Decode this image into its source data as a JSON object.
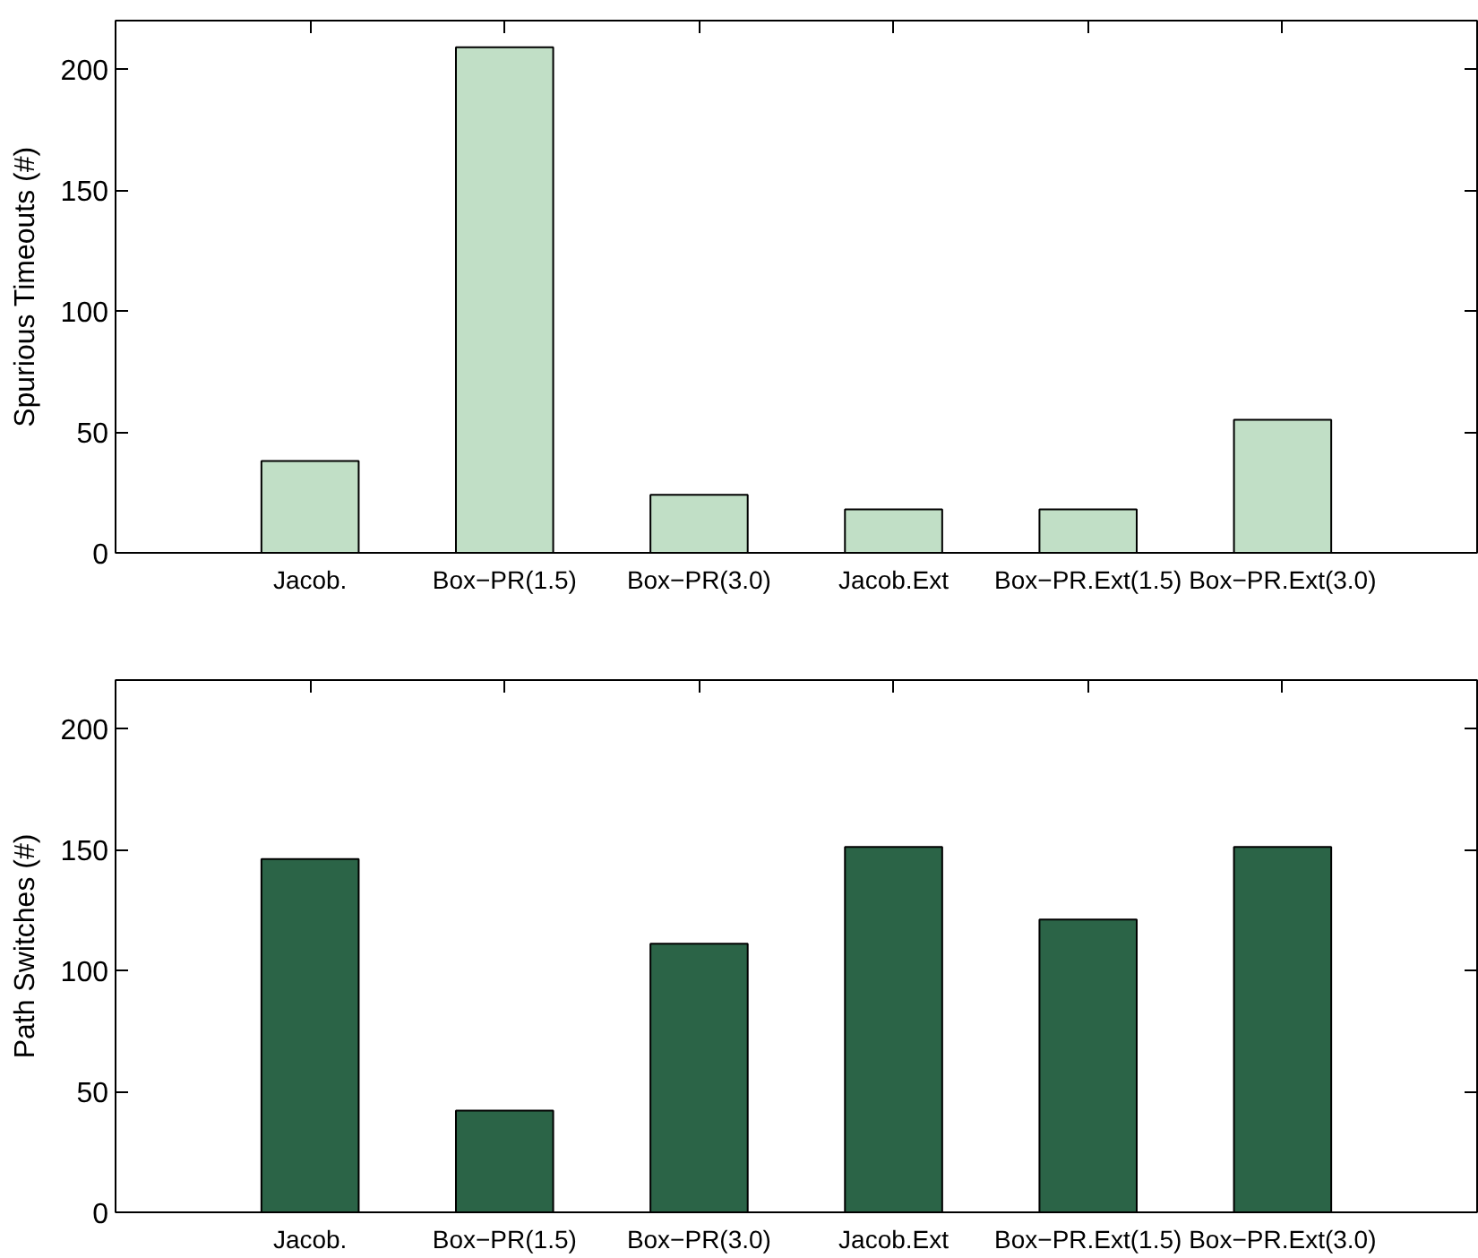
{
  "chart_data": [
    {
      "type": "bar",
      "categories": [
        "Jacob.",
        "Box−PR(1.5)",
        "Box−PR(3.0)",
        "Jacob.Ext",
        "Box−PR.Ext(1.5)",
        "Box−PR.Ext(3.0)"
      ],
      "values": [
        38,
        209,
        24,
        18,
        18,
        55
      ],
      "color": "#c1dfc6",
      "ylabel": "Spurious Timeouts (#)",
      "ylim": [
        0,
        220
      ],
      "yticks": [
        0,
        50,
        100,
        150,
        200
      ]
    },
    {
      "type": "bar",
      "categories": [
        "Jacob.",
        "Box−PR(1.5)",
        "Box−PR(3.0)",
        "Jacob.Ext",
        "Box−PR.Ext(1.5)",
        "Box−PR.Ext(3.0)"
      ],
      "values": [
        146,
        42,
        111,
        151,
        121,
        151
      ],
      "color": "#2b6447",
      "ylabel": "Path Switches (#)",
      "ylim": [
        0,
        220
      ],
      "yticks": [
        0,
        50,
        100,
        150,
        200
      ]
    }
  ]
}
